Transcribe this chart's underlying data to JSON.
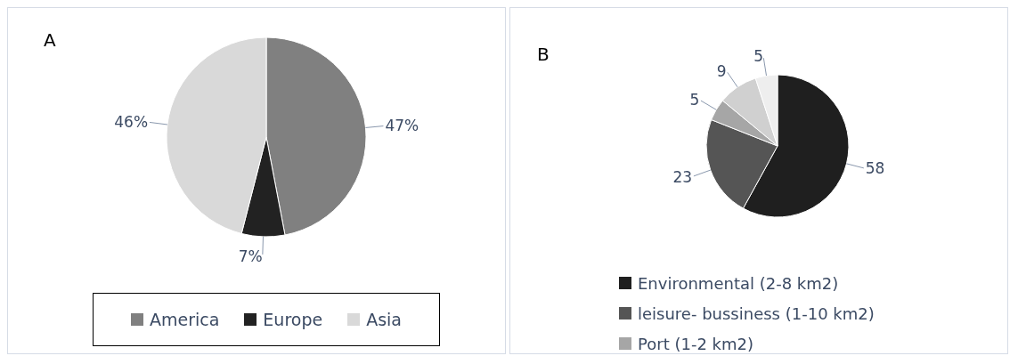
{
  "chart_data": [
    {
      "type": "pie",
      "title": "A",
      "categories": [
        "America",
        "Europe",
        "Asia"
      ],
      "values": [
        47,
        7,
        46
      ],
      "value_labels": [
        "47%",
        "7%",
        "46%"
      ],
      "colors": [
        "#808080",
        "#222222",
        "#d9d9d9"
      ],
      "legend": "bottom"
    },
    {
      "type": "pie",
      "title": "B",
      "categories": [
        "Environmental (2-8 km2)",
        "leisure- bussiness (1-10 km2)",
        "Port (1-2 km2)",
        null,
        null
      ],
      "values": [
        58,
        23,
        5,
        9,
        5
      ],
      "data_labels": true,
      "colors": [
        "#1f1f1f",
        "#555555",
        "#a6a6a6",
        "#d0d0d0",
        "#eeeeee"
      ],
      "legend": "bottom"
    }
  ]
}
